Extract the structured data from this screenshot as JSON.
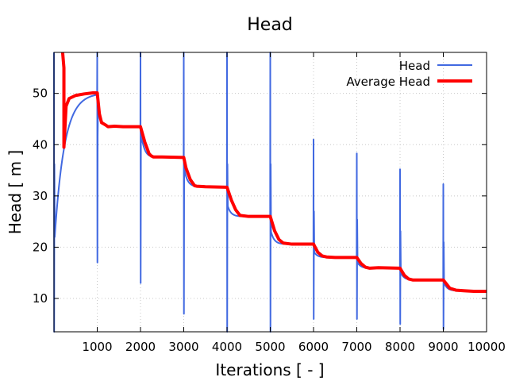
{
  "chart_data": {
    "type": "line",
    "title": "Head",
    "xlabel": "Iterations [ - ]",
    "ylabel": "Head [ m ]",
    "xlim": [
      0,
      10000
    ],
    "ylim": [
      3.5,
      58
    ],
    "xticks": [
      1000,
      2000,
      3000,
      4000,
      5000,
      6000,
      7000,
      8000,
      9000,
      10000
    ],
    "yticks": [
      10,
      20,
      30,
      40,
      50
    ],
    "grid": true,
    "legend_position": "top-right",
    "colors": {
      "head": "#4169e1",
      "average": "#ff0000"
    },
    "series": [
      {
        "name": "Head",
        "segments": [
          {
            "x0": 0,
            "x1": 1000,
            "spike_max": 58,
            "spike_min": 3.5,
            "start": 22,
            "plateau": 50.1,
            "settle": 900
          },
          {
            "x0": 1000,
            "x1": 2000,
            "spike_max": 58,
            "spike_min": 17,
            "start": 47,
            "plateau": 43.5,
            "settle": 300
          },
          {
            "x0": 2000,
            "x1": 3000,
            "spike_max": 58,
            "spike_min": 13,
            "start": 42,
            "plateau": 37.5,
            "settle": 300
          },
          {
            "x0": 3000,
            "x1": 4000,
            "spike_max": 58,
            "spike_min": 7,
            "start": 35,
            "plateau": 31.8,
            "settle": 300
          },
          {
            "x0": 4000,
            "x1": 5000,
            "spike_max": 58,
            "spike_min": 3.5,
            "start": 28,
            "plateau": 26.0,
            "settle": 300
          },
          {
            "x0": 5000,
            "x1": 6000,
            "spike_max": 58,
            "spike_min": 3.5,
            "start": 23,
            "plateau": 20.6,
            "settle": 300
          },
          {
            "x0": 6000,
            "x1": 7000,
            "spike_max": 41,
            "spike_min": 6,
            "start": 19,
            "plateau": 18.0,
            "settle": 300
          },
          {
            "x0": 7000,
            "x1": 8000,
            "spike_max": 38.3,
            "spike_min": 6,
            "start": 17,
            "plateau": 15.9,
            "settle": 300
          },
          {
            "x0": 8000,
            "x1": 9000,
            "spike_max": 35.2,
            "spike_min": 5,
            "start": 15,
            "plateau": 13.6,
            "settle": 300
          },
          {
            "x0": 9000,
            "x1": 10000,
            "spike_max": 32.3,
            "spike_min": 4,
            "start": 13,
            "plateau": 11.5,
            "settle": 300
          }
        ]
      },
      {
        "name": "Average Head",
        "x": [
          200,
          230,
          230,
          280,
          350,
          500,
          700,
          900,
          1000,
          1050,
          1100,
          1200,
          1250,
          1400,
          1600,
          1800,
          1990,
          2000,
          2100,
          2200,
          2250,
          2300,
          2500,
          2990,
          3000,
          3050,
          3150,
          3250,
          3300,
          3500,
          3990,
          4000,
          4100,
          4200,
          4300,
          4500,
          4990,
          5000,
          5100,
          5200,
          5300,
          5500,
          5990,
          6000,
          6100,
          6200,
          6300,
          6500,
          6990,
          7000,
          7100,
          7200,
          7300,
          7500,
          7990,
          8000,
          8100,
          8200,
          8300,
          8500,
          8990,
          9000,
          9150,
          9300,
          9500,
          9700,
          10000
        ],
        "y": [
          58,
          55,
          39.5,
          47.5,
          49.0,
          49.6,
          49.9,
          50.1,
          50.1,
          46,
          44.3,
          43.8,
          43.5,
          43.6,
          43.5,
          43.5,
          43.5,
          43.5,
          40.5,
          38.2,
          37.8,
          37.6,
          37.6,
          37.5,
          37.5,
          35.5,
          33.2,
          32.0,
          31.9,
          31.8,
          31.7,
          31.7,
          29.2,
          27.3,
          26.2,
          26.0,
          26.0,
          26.0,
          23.2,
          21.5,
          20.8,
          20.6,
          20.6,
          20.6,
          19.0,
          18.3,
          18.1,
          18.0,
          18.0,
          18.0,
          16.8,
          16.1,
          15.9,
          16.0,
          15.9,
          15.9,
          14.5,
          13.8,
          13.6,
          13.6,
          13.6,
          13.6,
          12.0,
          11.6,
          11.5,
          11.4,
          11.4
        ]
      }
    ]
  }
}
